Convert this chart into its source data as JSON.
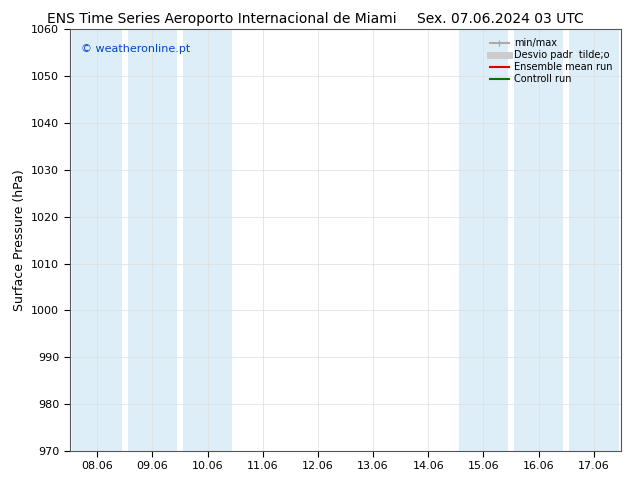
{
  "title_left": "ENS Time Series Aeroporto Internacional de Miami",
  "title_right": "Sex. 07.06.2024 03 UTC",
  "ylabel": "Surface Pressure (hPa)",
  "ylim": [
    970,
    1060
  ],
  "yticks": [
    970,
    980,
    990,
    1000,
    1010,
    1020,
    1030,
    1040,
    1050,
    1060
  ],
  "x_labels": [
    "08.06",
    "09.06",
    "10.06",
    "11.06",
    "12.06",
    "13.06",
    "14.06",
    "15.06",
    "16.06",
    "17.06"
  ],
  "x_values": [
    0,
    1,
    2,
    3,
    4,
    5,
    6,
    7,
    8,
    9
  ],
  "shaded_columns": [
    0,
    1,
    2,
    7,
    8,
    9
  ],
  "shade_color": "#ddeef8",
  "background_color": "#ffffff",
  "plot_bg_color": "#ffffff",
  "watermark": "© weatheronline.pt",
  "watermark_color": "#0044cc",
  "legend_entries": [
    {
      "label": "min/max",
      "color": "#aaaaaa",
      "lw": 1.5
    },
    {
      "label": "Desvio padr  tilde;o",
      "color": "#cccccc",
      "lw": 5
    },
    {
      "label": "Ensemble mean run",
      "color": "#dd0000",
      "lw": 1.5
    },
    {
      "label": "Controll run",
      "color": "#007700",
      "lw": 1.5
    }
  ],
  "title_fontsize": 10,
  "axis_label_fontsize": 9,
  "tick_fontsize": 8
}
